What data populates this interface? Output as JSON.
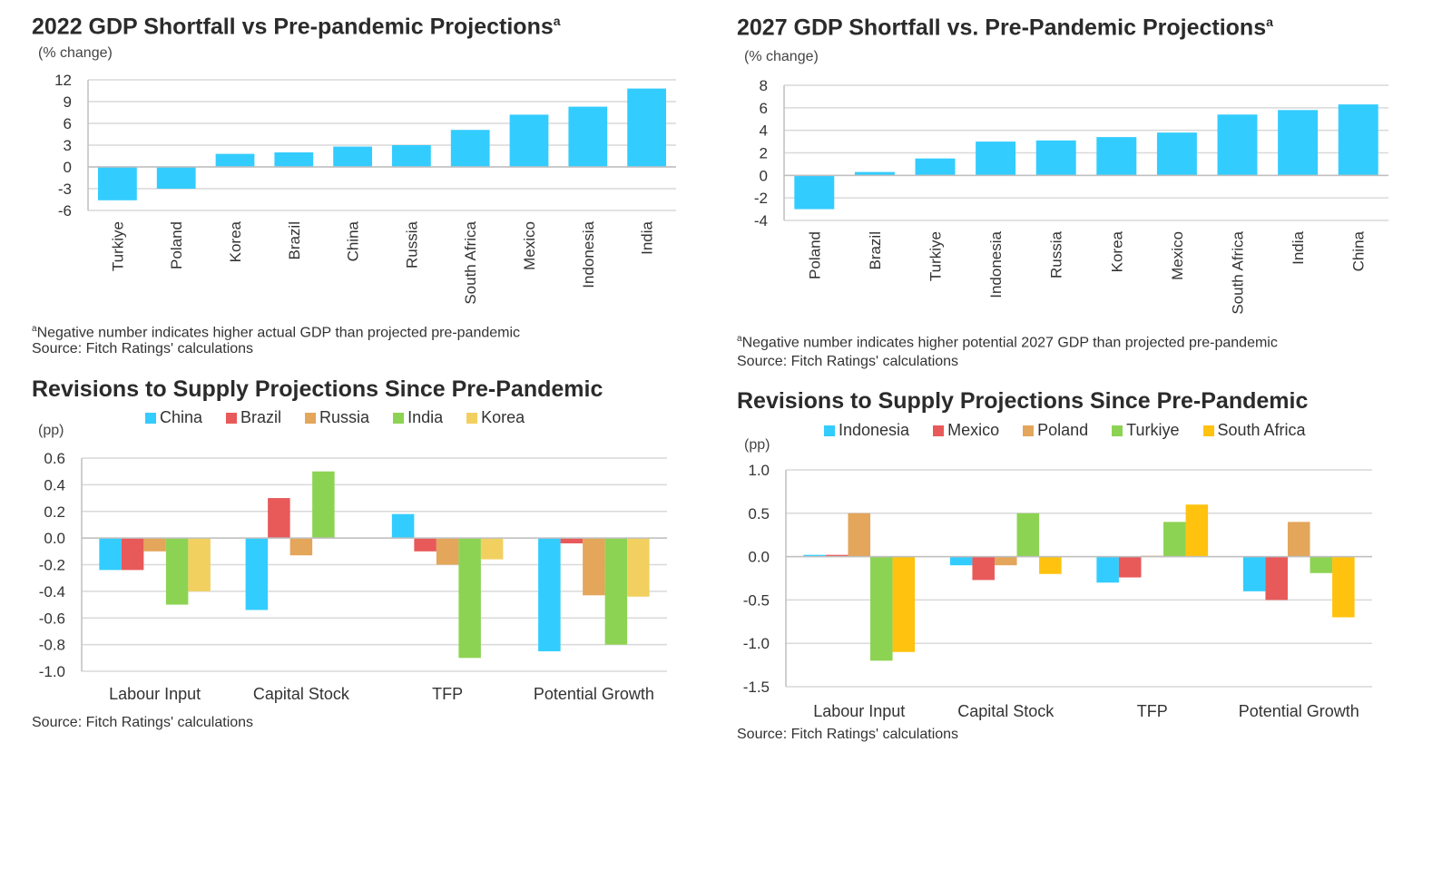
{
  "chart_data": [
    {
      "id": "c1",
      "type": "bar",
      "title": "2022 GDP Shortfall vs Pre-pandemic Projections",
      "title_sup": "a",
      "ylabel": "(% change)",
      "categories": [
        "Turkiye",
        "Poland",
        "Korea",
        "Brazil",
        "China",
        "Russia",
        "South Africa",
        "Mexico",
        "Indonesia",
        "India"
      ],
      "values": [
        -4.6,
        -3.0,
        1.8,
        2.0,
        2.8,
        3.0,
        5.1,
        7.2,
        8.3,
        10.8
      ],
      "ylim": [
        -6,
        12
      ],
      "yticks": [
        12,
        9,
        6,
        3,
        0,
        -3,
        -6
      ],
      "color": "#33CCFF",
      "footnote": "Negative number indicates higher actual GDP than projected pre-pandemic",
      "footnote_sup": "a",
      "source": "Source: Fitch Ratings' calculations"
    },
    {
      "id": "c2",
      "type": "bar",
      "title": "2027 GDP Shortfall vs. Pre-Pandemic Projections",
      "title_sup": "a",
      "ylabel": "(% change)",
      "categories": [
        "Poland",
        "Brazil",
        "Turkiye",
        "Indonesia",
        "Russia",
        "Korea",
        "Mexico",
        "South Africa",
        "India",
        "China"
      ],
      "values": [
        -3.0,
        0.3,
        1.5,
        3.0,
        3.1,
        3.4,
        3.8,
        5.4,
        5.8,
        6.3
      ],
      "ylim": [
        -4,
        8
      ],
      "yticks": [
        8,
        6,
        4,
        2,
        0,
        -2,
        -4
      ],
      "color": "#33CCFF",
      "footnote": "Negative number indicates higher potential 2027 GDP than projected pre-pandemic",
      "footnote_sup": "a",
      "source": "Source: Fitch Ratings' calculations"
    },
    {
      "id": "c3",
      "type": "bar",
      "title": "Revisions to Supply Projections Since Pre-Pandemic",
      "ylabel": "(pp)",
      "categories": [
        "Labour Input",
        "Capital Stock",
        "TFP",
        "Potential Growth"
      ],
      "ylim": [
        -1.0,
        0.6
      ],
      "yticks": [
        "0.6",
        "0.4",
        "0.2",
        "0.0",
        "-0.2",
        "-0.4",
        "-0.6",
        "-0.8",
        "-1.0"
      ],
      "series": [
        {
          "name": "China",
          "color": "#33CCFF",
          "values": [
            -0.24,
            -0.54,
            0.18,
            -0.85
          ]
        },
        {
          "name": "Brazil",
          "color": "#E8595A",
          "values": [
            -0.24,
            0.3,
            -0.1,
            -0.04
          ]
        },
        {
          "name": "Russia",
          "color": "#E3A65A",
          "values": [
            -0.1,
            -0.13,
            -0.2,
            -0.43
          ]
        },
        {
          "name": "India",
          "color": "#8DD353",
          "values": [
            -0.5,
            0.5,
            -0.9,
            -0.8
          ]
        },
        {
          "name": "Korea",
          "color": "#F2D060",
          "values": [
            -0.4,
            0.0,
            -0.16,
            -0.44
          ]
        }
      ],
      "source": "Source: Fitch Ratings' calculations"
    },
    {
      "id": "c4",
      "type": "bar",
      "title": "Revisions to Supply Projections Since Pre-Pandemic",
      "ylabel": "(pp)",
      "categories": [
        "Labour Input",
        "Capital Stock",
        "TFP",
        "Potential Growth"
      ],
      "ylim": [
        -1.5,
        1.0
      ],
      "yticks": [
        "1.0",
        "0.5",
        "0.0",
        "-0.5",
        "-1.0",
        "-1.5"
      ],
      "series": [
        {
          "name": "Indonesia",
          "color": "#33CCFF",
          "values": [
            0.02,
            -0.1,
            -0.3,
            -0.4
          ]
        },
        {
          "name": "Mexico",
          "color": "#E8595A",
          "values": [
            0.02,
            -0.27,
            -0.24,
            -0.5
          ]
        },
        {
          "name": "Poland",
          "color": "#E3A65A",
          "values": [
            0.5,
            -0.1,
            0.01,
            0.4
          ]
        },
        {
          "name": "Turkiye",
          "color": "#8DD353",
          "values": [
            -1.2,
            0.5,
            0.4,
            -0.19
          ]
        },
        {
          "name": "South Africa",
          "color": "#FFC20E",
          "values": [
            -1.1,
            -0.2,
            0.6,
            -0.7
          ]
        }
      ],
      "source": "Source: Fitch Ratings' calculations"
    }
  ]
}
